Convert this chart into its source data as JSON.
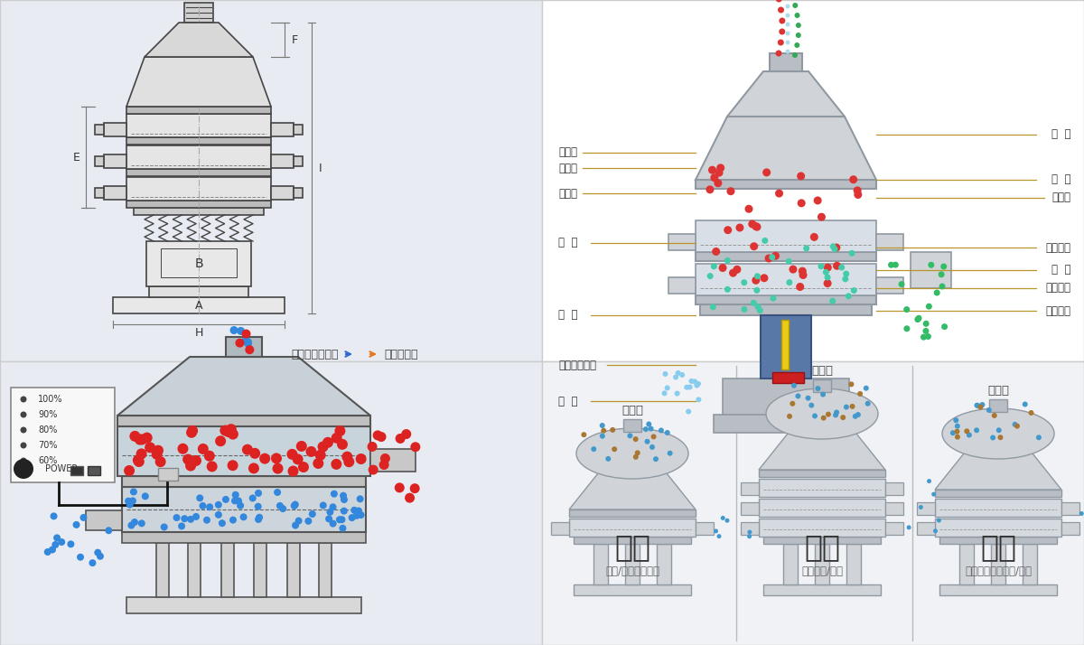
{
  "bg_color": "#f0f2f5",
  "top_left_bg": "#e8ecf2",
  "top_right_bg": "#ffffff",
  "bottom_left_bg": "#e8ecf2",
  "bottom_right_bg": "#f0f2f5",
  "divider_color": "#cccccc",
  "lc": "#444444",
  "dlc": "#777777",
  "blue_dot": "#3399dd",
  "red_dot": "#dd3333",
  "green_dot": "#33aa55",
  "tan_dot": "#c89060",
  "labels_left": [
    "进料口",
    "防尘盖",
    "出料口",
    "束  环",
    "弹  簧",
    "运输固定螺栓",
    "机  座"
  ],
  "labels_right": [
    "筛  网",
    "网  架",
    "加重块",
    "上部重锤",
    "筛  盘",
    "振动电机",
    "下部重锤"
  ],
  "nav_left_text": "外形尺寸示意图",
  "nav_right_text": "结构示意图",
  "bottom_labels": [
    "单层式",
    "三层式",
    "双层式"
  ],
  "bottom_titles": [
    "分级",
    "过滤",
    "除杂"
  ],
  "bottom_subtitles": [
    "颗粒/粉末准确分级",
    "去除异物/结块",
    "去除液体中的颗粒/异物"
  ],
  "controller_pcts": [
    "100%",
    "90%",
    "80%",
    "70%",
    "60%"
  ],
  "controller_label": "POWER"
}
